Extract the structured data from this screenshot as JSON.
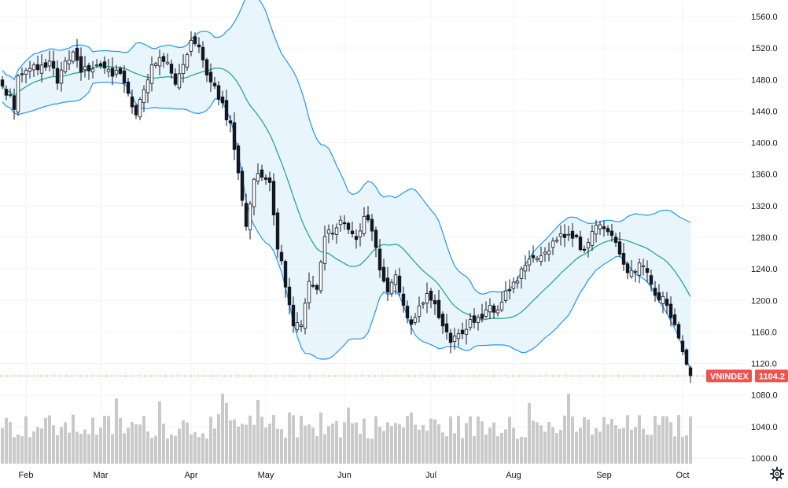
{
  "chart_data": {
    "type": "candlestick",
    "title": "",
    "symbol": "VNINDEX",
    "last_price_label": "1104.2",
    "y_range": [
      1000,
      1570
    ],
    "y_ticks": [
      "1000.0",
      "1040.0",
      "1080.0",
      "1120.0",
      "1160.0",
      "1200.0",
      "1240.0",
      "1280.0",
      "1320.0",
      "1360.0",
      "1400.0",
      "1440.0",
      "1480.0",
      "1520.0",
      "1560.0"
    ],
    "x_labels": [
      "Feb",
      "Mar",
      "Apr",
      "May",
      "Jun",
      "Jul",
      "Aug",
      "Sep",
      "Oct"
    ],
    "x_label_day_index": [
      6,
      25,
      48,
      67,
      87,
      109,
      130,
      153,
      173
    ],
    "day_count": 176,
    "anchors": [
      {
        "d": 0,
        "c": 1470
      },
      {
        "d": 2,
        "c": 1455
      },
      {
        "d": 3,
        "c": 1440
      },
      {
        "d": 4,
        "c": 1480
      },
      {
        "d": 8,
        "c": 1495
      },
      {
        "d": 12,
        "c": 1500
      },
      {
        "d": 14,
        "c": 1480
      },
      {
        "d": 16,
        "c": 1505
      },
      {
        "d": 18,
        "c": 1510
      },
      {
        "d": 20,
        "c": 1490
      },
      {
        "d": 24,
        "c": 1500
      },
      {
        "d": 26,
        "c": 1495
      },
      {
        "d": 28,
        "c": 1485
      },
      {
        "d": 30,
        "c": 1490
      },
      {
        "d": 32,
        "c": 1460
      },
      {
        "d": 34,
        "c": 1440
      },
      {
        "d": 36,
        "c": 1465
      },
      {
        "d": 38,
        "c": 1500
      },
      {
        "d": 42,
        "c": 1505
      },
      {
        "d": 44,
        "c": 1480
      },
      {
        "d": 46,
        "c": 1500
      },
      {
        "d": 48,
        "c": 1530
      },
      {
        "d": 50,
        "c": 1520
      },
      {
        "d": 52,
        "c": 1485
      },
      {
        "d": 54,
        "c": 1470
      },
      {
        "d": 56,
        "c": 1445
      },
      {
        "d": 58,
        "c": 1420
      },
      {
        "d": 60,
        "c": 1360
      },
      {
        "d": 62,
        "c": 1290
      },
      {
        "d": 64,
        "c": 1350
      },
      {
        "d": 66,
        "c": 1360
      },
      {
        "d": 68,
        "c": 1345
      },
      {
        "d": 70,
        "c": 1270
      },
      {
        "d": 72,
        "c": 1220
      },
      {
        "d": 74,
        "c": 1170
      },
      {
        "d": 76,
        "c": 1165
      },
      {
        "d": 78,
        "c": 1230
      },
      {
        "d": 80,
        "c": 1210
      },
      {
        "d": 82,
        "c": 1280
      },
      {
        "d": 84,
        "c": 1290
      },
      {
        "d": 86,
        "c": 1300
      },
      {
        "d": 88,
        "c": 1290
      },
      {
        "d": 90,
        "c": 1275
      },
      {
        "d": 92,
        "c": 1310
      },
      {
        "d": 94,
        "c": 1290
      },
      {
        "d": 96,
        "c": 1240
      },
      {
        "d": 98,
        "c": 1215
      },
      {
        "d": 100,
        "c": 1230
      },
      {
        "d": 102,
        "c": 1190
      },
      {
        "d": 104,
        "c": 1170
      },
      {
        "d": 106,
        "c": 1195
      },
      {
        "d": 108,
        "c": 1210
      },
      {
        "d": 110,
        "c": 1200
      },
      {
        "d": 112,
        "c": 1165
      },
      {
        "d": 114,
        "c": 1150
      },
      {
        "d": 116,
        "c": 1160
      },
      {
        "d": 118,
        "c": 1165
      },
      {
        "d": 120,
        "c": 1175
      },
      {
        "d": 122,
        "c": 1180
      },
      {
        "d": 124,
        "c": 1190
      },
      {
        "d": 126,
        "c": 1185
      },
      {
        "d": 128,
        "c": 1210
      },
      {
        "d": 130,
        "c": 1220
      },
      {
        "d": 132,
        "c": 1240
      },
      {
        "d": 134,
        "c": 1250
      },
      {
        "d": 136,
        "c": 1255
      },
      {
        "d": 138,
        "c": 1260
      },
      {
        "d": 140,
        "c": 1270
      },
      {
        "d": 142,
        "c": 1280
      },
      {
        "d": 144,
        "c": 1285
      },
      {
        "d": 146,
        "c": 1275
      },
      {
        "d": 148,
        "c": 1265
      },
      {
        "d": 150,
        "c": 1290
      },
      {
        "d": 152,
        "c": 1290
      },
      {
        "d": 154,
        "c": 1285
      },
      {
        "d": 156,
        "c": 1270
      },
      {
        "d": 158,
        "c": 1245
      },
      {
        "d": 160,
        "c": 1235
      },
      {
        "d": 162,
        "c": 1250
      },
      {
        "d": 164,
        "c": 1230
      },
      {
        "d": 166,
        "c": 1210
      },
      {
        "d": 168,
        "c": 1200
      },
      {
        "d": 170,
        "c": 1180
      },
      {
        "d": 172,
        "c": 1150
      },
      {
        "d": 174,
        "c": 1115
      },
      {
        "d": 175,
        "c": 1104.2
      }
    ],
    "bollinger_period": 20,
    "bollinger_stddev": 2,
    "volume_note": "relative volume bars, 0-1 scale",
    "colors": {
      "candle": "#131722",
      "middle_band": "#26a69a",
      "outer_band": "#2196f3",
      "band_fill": "#e3f2fd",
      "volume": "#c9c9c9",
      "grid": "#f0f3fa",
      "price_tag": "#ef5350",
      "price_line": "#ef5350"
    }
  },
  "ui": {
    "settings_icon": "gear-icon"
  }
}
